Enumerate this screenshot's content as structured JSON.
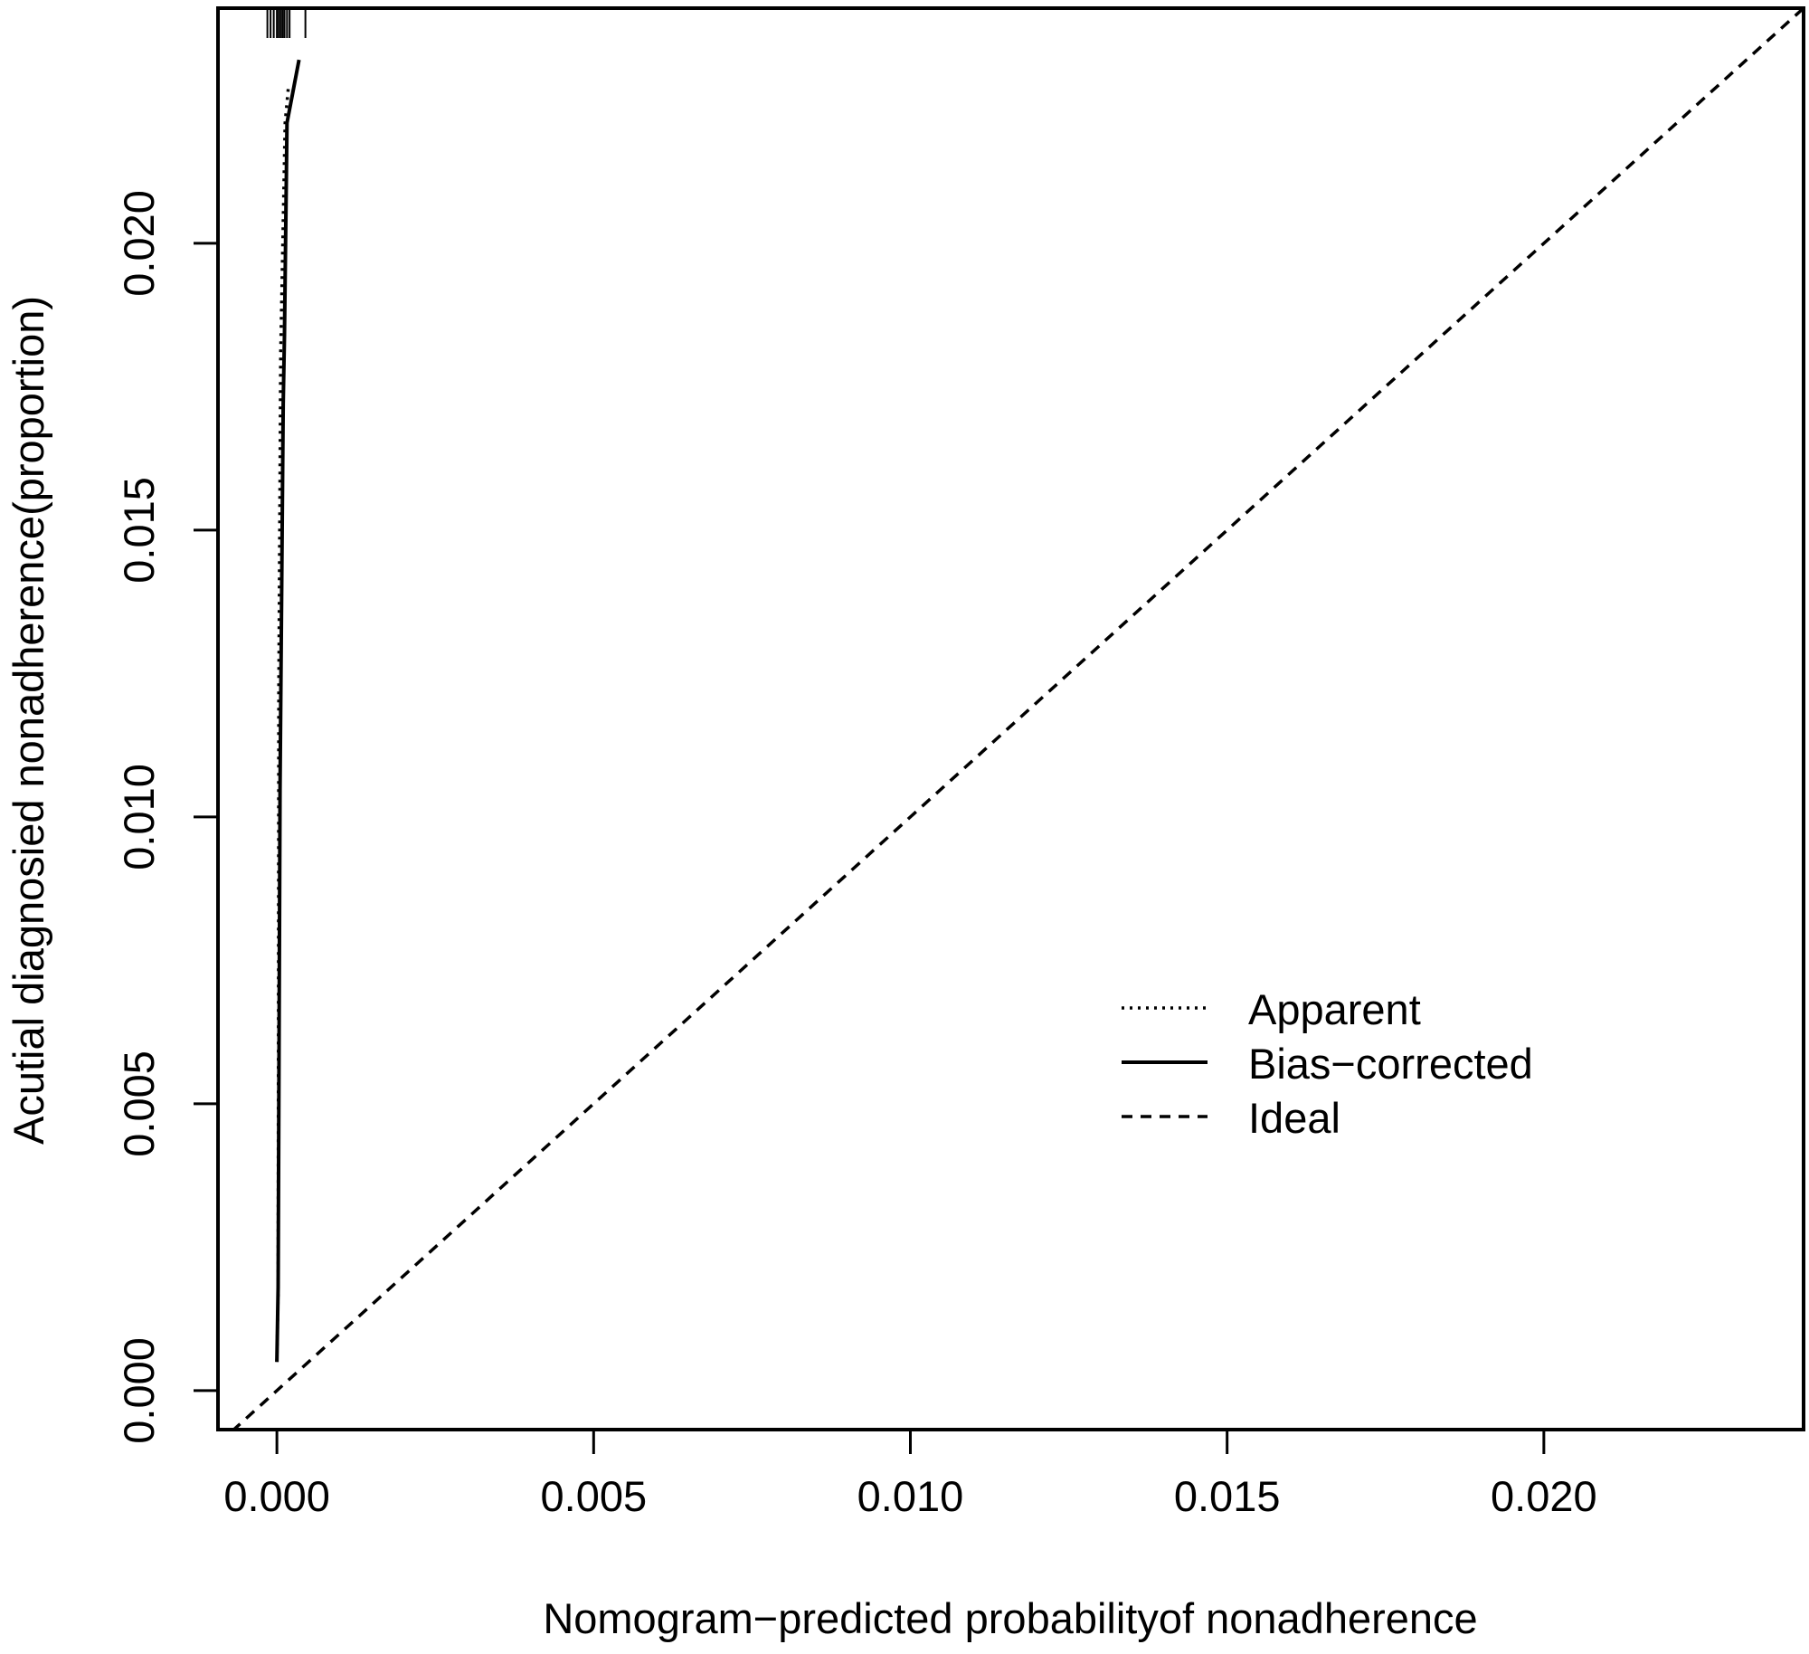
{
  "chart_data": {
    "type": "line",
    "title": "",
    "xlabel": "Nomogram−predicted probabilityof nonadherence",
    "ylabel": "Acutial diagnosied nonadherence(proportion)",
    "xlim": [
      -0.00093,
      0.0241
    ],
    "ylim": [
      -0.00068,
      0.0241
    ],
    "xticks": [
      0.0,
      0.005,
      0.01,
      0.015,
      0.02
    ],
    "xtick_labels": [
      "0.000",
      "0.005",
      "0.010",
      "0.015",
      "0.020"
    ],
    "yticks": [
      0.0,
      0.005,
      0.01,
      0.015,
      0.02
    ],
    "ytick_labels": [
      "0.000",
      "0.005",
      "0.010",
      "0.015",
      "0.020"
    ],
    "grid": false,
    "legend_position": "center-right",
    "series": [
      {
        "name": "Apparent",
        "style": "dotted",
        "x": [
          0.0,
          2e-05,
          3e-05,
          6e-05,
          0.00013,
          0.00018
        ],
        "y": [
          0.0005,
          0.0017,
          0.0122,
          0.0181,
          0.0221,
          0.0227
        ]
      },
      {
        "name": "Bias−corrected",
        "style": "solid",
        "x": [
          0.0,
          2e-05,
          5e-05,
          0.0001,
          0.00012,
          0.00016,
          0.00035
        ],
        "y": [
          0.0005,
          0.0018,
          0.0105,
          0.0172,
          0.0184,
          0.0221,
          0.0232
        ]
      },
      {
        "name": "Ideal",
        "style": "dashed",
        "x": [
          -0.00093,
          0.0241
        ],
        "y": [
          -0.00093,
          0.0241
        ]
      }
    ],
    "rug": {
      "position": "top",
      "x": [
        -0.00015,
        -0.0001,
        -5e-05,
        0.0,
        3e-05,
        6e-05,
        9e-05,
        0.00012,
        0.00016,
        0.0002,
        0.00045
      ]
    }
  }
}
